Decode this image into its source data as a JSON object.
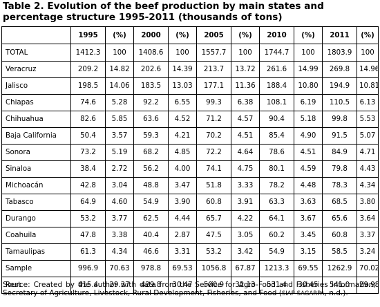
{
  "title": "Table 2. Evolution of the beef production by main states and percentage structure 1995-2011 (thousands of tons)",
  "headers": [
    "",
    "1995",
    "(%)",
    "2000",
    "(%)",
    "2005",
    "(%)",
    "2010",
    "(%)",
    "2011",
    "(%)"
  ],
  "rows": [
    [
      "TOTAL",
      "1412.3",
      "100",
      "1408.6",
      "100",
      "1557.7",
      "100",
      "1744.7",
      "100",
      "1803.9",
      "100"
    ],
    [
      "Veracruz",
      "209.2",
      "14.82",
      "202.6",
      "14.39",
      "213.7",
      "13.72",
      "261.6",
      "14.99",
      "269.8",
      "14.96"
    ],
    [
      "Jalisco",
      "198.5",
      "14.06",
      "183.5",
      "13.03",
      "177.1",
      "11.36",
      "188.4",
      "10.80",
      "194.9",
      "10.81"
    ],
    [
      "Chiapas",
      "74.6",
      "5.28",
      "92.2",
      "6.55",
      "99.3",
      "6.38",
      "108.1",
      "6.19",
      "110.5",
      "6.13"
    ],
    [
      "Chihuahua",
      "82.6",
      "5.85",
      "63.6",
      "4.52",
      "71.2",
      "4.57",
      "90.4",
      "5.18",
      "99.8",
      "5.53"
    ],
    [
      "Baja California",
      "50.4",
      "3.57",
      "59.3",
      "4.21",
      "70.2",
      "4.51",
      "85.4",
      "4.90",
      "91.5",
      "5.07"
    ],
    [
      "Sonora",
      "73.2",
      "5.19",
      "68.2",
      "4.85",
      "72.2",
      "4.64",
      "78.6",
      "4.51",
      "84.9",
      "4.71"
    ],
    [
      "Sinaloa",
      "38.4",
      "2.72",
      "56.2",
      "4.00",
      "74.1",
      "4.75",
      "80.1",
      "4.59",
      "79.8",
      "4.43"
    ],
    [
      "Michoacán",
      "42.8",
      "3.04",
      "48.8",
      "3.47",
      "51.8",
      "3.33",
      "78.2",
      "4.48",
      "78.3",
      "4.34"
    ],
    [
      "Tabasco",
      "64.9",
      "4.60",
      "54.9",
      "3.90",
      "60.8",
      "3.91",
      "63.3",
      "3.63",
      "68.5",
      "3.80"
    ],
    [
      "Durango",
      "53.2",
      "3.77",
      "62.5",
      "4.44",
      "65.7",
      "4.22",
      "64.1",
      "3.67",
      "65.6",
      "3.64"
    ],
    [
      "Coahuila",
      "47.8",
      "3.38",
      "40.4",
      "2.87",
      "47.5",
      "3.05",
      "60.2",
      "3.45",
      "60.8",
      "3.37"
    ],
    [
      "Tamaulipas",
      "61.3",
      "4.34",
      "46.6",
      "3.31",
      "53.2",
      "3.42",
      "54.9",
      "3.15",
      "58.5",
      "3.24"
    ],
    [
      "Sample",
      "996.9",
      "70.63",
      "978.8",
      "69.53",
      "1056.8",
      "67.87",
      "1213.3",
      "69.55",
      "1262.9",
      "70.02"
    ],
    [
      "Rest",
      "415.4",
      "29.37",
      "429.8",
      "30.47",
      "500.9",
      "32.13",
      "531.4",
      "30.45",
      "541.0",
      "29.98"
    ]
  ],
  "source": {
    "text": "Source: Created by the author with data from the Service for Agro-Food and Fisheries Information; Secretary of Agriculture, Livestock, Rural Development, Fisheries, and Food (",
    "acronym": "SIAP-SAGARPA",
    "tail": ", n.d.)."
  }
}
